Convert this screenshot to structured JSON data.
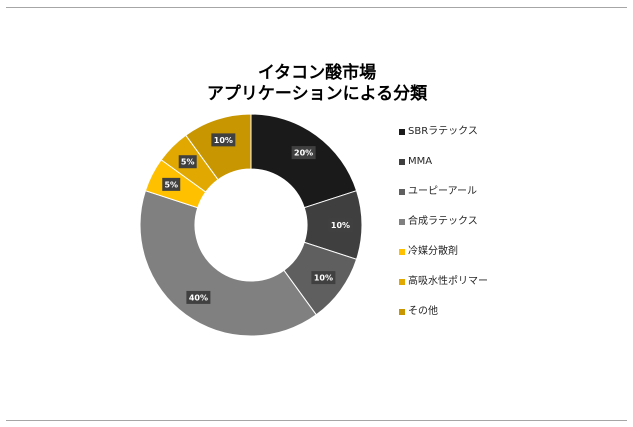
{
  "chart_data": {
    "type": "pie",
    "donut": true,
    "title_lines": [
      "イタコン酸市場",
      "アプリケーションによる分類"
    ],
    "categories": [
      "SBRラテックス",
      "MMA",
      "ユーピーアール",
      "合成ラテックス",
      "冷媒分散剤",
      "高吸水性ポリマー",
      "その他"
    ],
    "values": [
      20,
      10,
      10,
      40,
      5,
      5,
      10
    ],
    "data_labels": [
      "20%",
      "10%",
      "10%",
      "40%",
      "5%",
      "5%",
      "10%"
    ],
    "colors": [
      "#1a1a1a",
      "#3f3f3f",
      "#5f5f5f",
      "#808080",
      "#ffc000",
      "#e0a800",
      "#c89600"
    ],
    "legend_position": "right"
  }
}
